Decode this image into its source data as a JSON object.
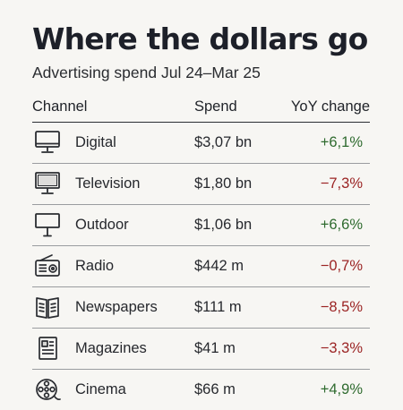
{
  "header": {
    "title": "Where the dollars go",
    "subtitle": "Advertising spend Jul 24–Mar 25"
  },
  "table": {
    "columns": [
      "Channel",
      "Spend",
      "YoY change"
    ],
    "rows": [
      {
        "channel": "Digital",
        "spend": "$3,07 bn",
        "yoy": "+6,1%",
        "direction": "positive",
        "icon": "monitor-icon"
      },
      {
        "channel": "Television",
        "spend": "$1,80 bn",
        "yoy": "−7,3%",
        "direction": "negative",
        "icon": "tv-icon"
      },
      {
        "channel": "Outdoor",
        "spend": "$1,06 bn",
        "yoy": "+6,6%",
        "direction": "positive",
        "icon": "billboard-icon"
      },
      {
        "channel": "Radio",
        "spend": "$442 m",
        "yoy": "−0,7%",
        "direction": "negative",
        "icon": "radio-icon"
      },
      {
        "channel": "Newspapers",
        "spend": "$111 m",
        "yoy": "−8,5%",
        "direction": "negative",
        "icon": "newspaper-icon"
      },
      {
        "channel": "Magazines",
        "spend": "$41 m",
        "yoy": "−3,3%",
        "direction": "negative",
        "icon": "magazine-icon"
      },
      {
        "channel": "Cinema",
        "spend": "$66 m",
        "yoy": "+4,9%",
        "direction": "positive",
        "icon": "film-reel-icon"
      }
    ]
  },
  "colors": {
    "positive": "#2f6b2f",
    "negative": "#9b2424",
    "background": "#f7f6f3"
  }
}
